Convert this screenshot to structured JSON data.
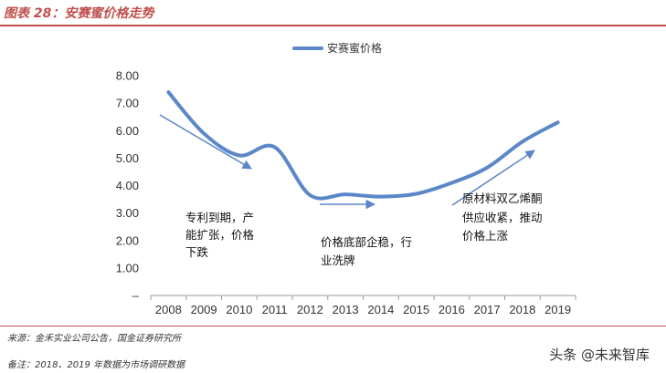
{
  "figure": {
    "title": "图表 28：安赛蜜价格走势",
    "source": "来源：金禾实业公司公告，国金证券研究所",
    "remark": "备注：2018、2019 年数据为市场调研数据",
    "watermark": "头条 @未来智库"
  },
  "chart_data": {
    "type": "line",
    "title": "",
    "xlabel": "",
    "ylabel": "",
    "x": [
      "2008",
      "2009",
      "2010",
      "2011",
      "2012",
      "2013",
      "2014",
      "2015",
      "2016",
      "2017",
      "2018",
      "2019"
    ],
    "ylim": [
      0,
      8
    ],
    "yticks": [
      "–",
      "1.00",
      "2.00",
      "3.00",
      "4.00",
      "5.00",
      "6.00",
      "7.00",
      "8.00"
    ],
    "grid": false,
    "legend_position": "top-center",
    "series": [
      {
        "name": "安赛蜜价格",
        "color": "#5b87c8",
        "values": [
          7.4,
          5.9,
          5.1,
          5.4,
          3.65,
          3.68,
          3.6,
          3.7,
          4.1,
          4.65,
          5.6,
          6.3
        ]
      }
    ],
    "annotations": [
      {
        "lines": [
          "专利到期，产",
          "能扩张，价格",
          "下跌"
        ]
      },
      {
        "lines": [
          "价格底部企稳，行",
          "业洗牌"
        ]
      },
      {
        "lines": [
          "原材料双乙烯酮",
          "供应收紧，推动",
          "价格上涨"
        ]
      }
    ]
  }
}
